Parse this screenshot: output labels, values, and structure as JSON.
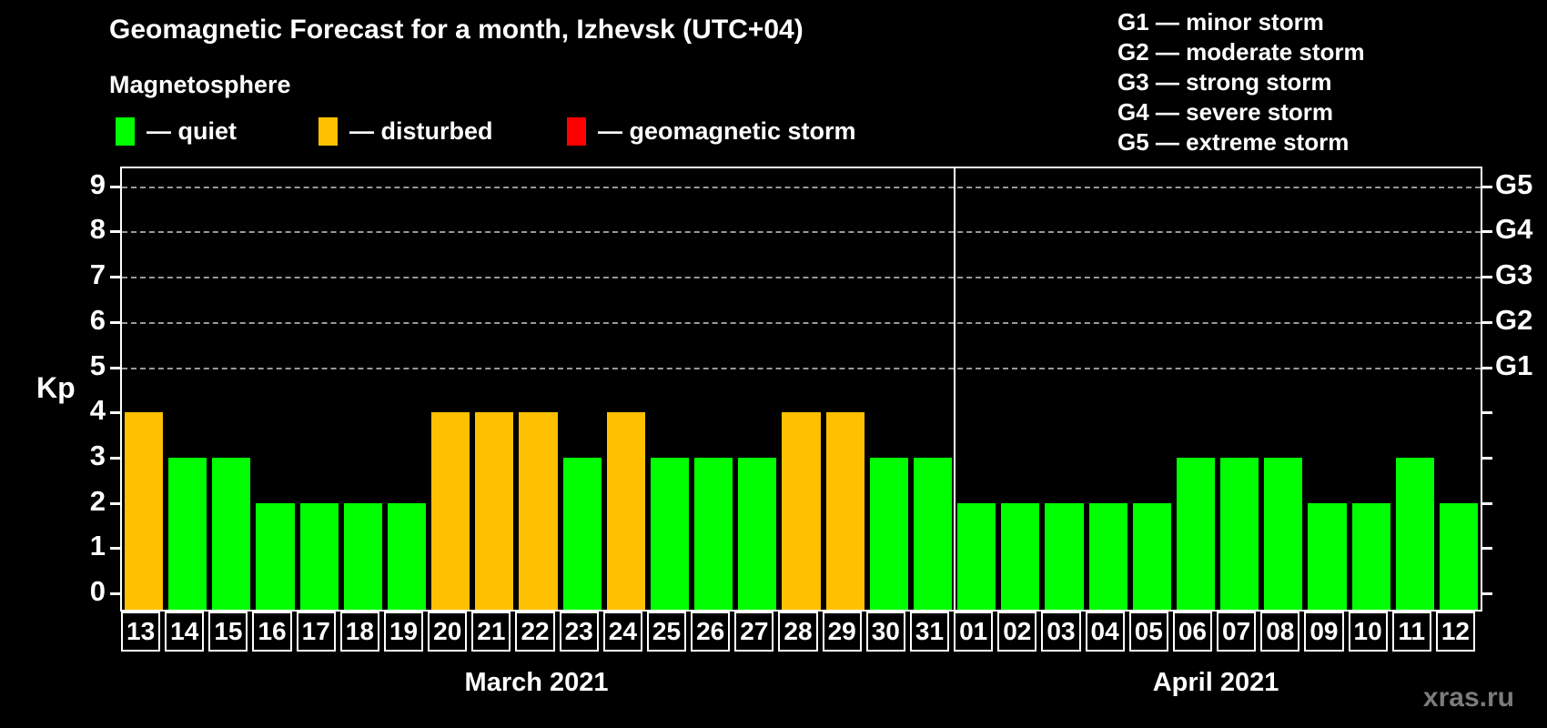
{
  "title": "Geomagnetic Forecast for a month, Izhevsk (UTC+04)",
  "subtitle": "Magnetosphere",
  "legend": {
    "items": [
      {
        "key": "quiet",
        "label": "— quiet",
        "color": "#00ff00"
      },
      {
        "key": "disturbed",
        "label": "— disturbed",
        "color": "#ffc000"
      },
      {
        "key": "storm",
        "label": "— geomagnetic storm",
        "color": "#ff0000"
      }
    ]
  },
  "g_legend": [
    "G1 — minor storm",
    "G2 — moderate storm",
    "G3 — strong storm",
    "G4 — severe storm",
    "G5 — extreme storm"
  ],
  "watermark": "xras.ru",
  "chart_data": {
    "type": "bar",
    "ylabel": "Kp",
    "ylim": [
      -0.36,
      9.4
    ],
    "yticks": [
      0,
      1,
      2,
      3,
      4,
      5,
      6,
      7,
      8,
      9
    ],
    "grid_kp": [
      5,
      6,
      7,
      8,
      9
    ],
    "grid_on": true,
    "right_axis_labels": [
      {
        "kp": 5,
        "label": "G1"
      },
      {
        "kp": 6,
        "label": "G2"
      },
      {
        "kp": 7,
        "label": "G3"
      },
      {
        "kp": 8,
        "label": "G4"
      },
      {
        "kp": 9,
        "label": "G5"
      }
    ],
    "colors": {
      "quiet": "#00ff00",
      "disturbed": "#ffc000",
      "storm": "#ff0000"
    },
    "months": [
      {
        "label": "March 2021",
        "days": [
          {
            "day": "13",
            "kp": 4,
            "status": "disturbed"
          },
          {
            "day": "14",
            "kp": 3,
            "status": "quiet"
          },
          {
            "day": "15",
            "kp": 3,
            "status": "quiet"
          },
          {
            "day": "16",
            "kp": 2,
            "status": "quiet"
          },
          {
            "day": "17",
            "kp": 2,
            "status": "quiet"
          },
          {
            "day": "18",
            "kp": 2,
            "status": "quiet"
          },
          {
            "day": "19",
            "kp": 2,
            "status": "quiet"
          },
          {
            "day": "20",
            "kp": 4,
            "status": "disturbed"
          },
          {
            "day": "21",
            "kp": 4,
            "status": "disturbed"
          },
          {
            "day": "22",
            "kp": 4,
            "status": "disturbed"
          },
          {
            "day": "23",
            "kp": 3,
            "status": "quiet"
          },
          {
            "day": "24",
            "kp": 4,
            "status": "disturbed"
          },
          {
            "day": "25",
            "kp": 3,
            "status": "quiet"
          },
          {
            "day": "26",
            "kp": 3,
            "status": "quiet"
          },
          {
            "day": "27",
            "kp": 3,
            "status": "quiet"
          },
          {
            "day": "28",
            "kp": 4,
            "status": "disturbed"
          },
          {
            "day": "29",
            "kp": 4,
            "status": "disturbed"
          },
          {
            "day": "30",
            "kp": 3,
            "status": "quiet"
          },
          {
            "day": "31",
            "kp": 3,
            "status": "quiet"
          }
        ]
      },
      {
        "label": "April 2021",
        "days": [
          {
            "day": "01",
            "kp": 2,
            "status": "quiet"
          },
          {
            "day": "02",
            "kp": 2,
            "status": "quiet"
          },
          {
            "day": "03",
            "kp": 2,
            "status": "quiet"
          },
          {
            "day": "04",
            "kp": 2,
            "status": "quiet"
          },
          {
            "day": "05",
            "kp": 2,
            "status": "quiet"
          },
          {
            "day": "06",
            "kp": 3,
            "status": "quiet"
          },
          {
            "day": "07",
            "kp": 3,
            "status": "quiet"
          },
          {
            "day": "08",
            "kp": 3,
            "status": "quiet"
          },
          {
            "day": "09",
            "kp": 2,
            "status": "quiet"
          },
          {
            "day": "10",
            "kp": 2,
            "status": "quiet"
          },
          {
            "day": "11",
            "kp": 3,
            "status": "quiet"
          },
          {
            "day": "12",
            "kp": 2,
            "status": "quiet"
          }
        ]
      }
    ]
  }
}
